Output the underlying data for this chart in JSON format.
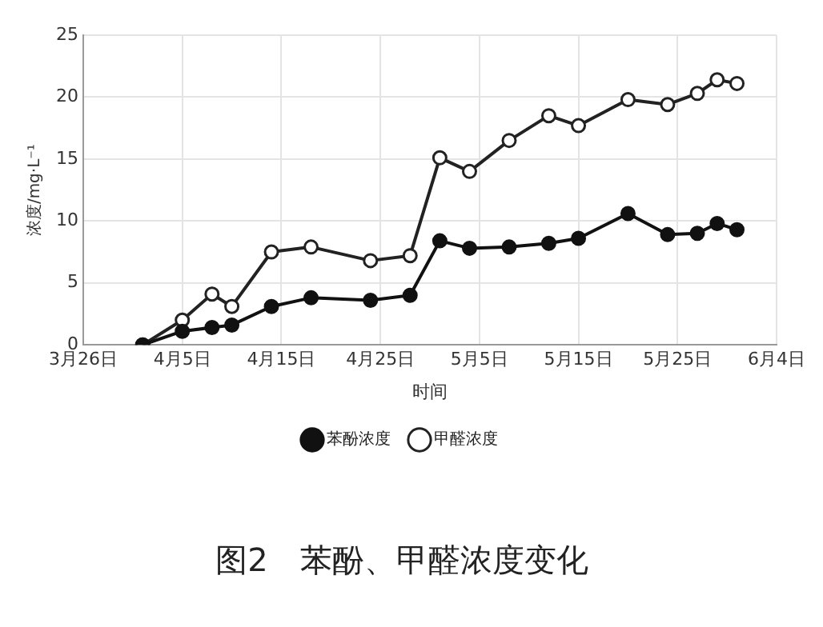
{
  "chart_data": {
    "type": "line",
    "title": "图2　苯酚、甲醛浓度变化",
    "xlabel": "时间",
    "ylabel": "浓度/mg·L⁻¹",
    "x": [
      "--04-01",
      "--04-05",
      "--04-08",
      "--04-10",
      "--04-14",
      "--04-18",
      "--04-24",
      "--04-28",
      "--05-01",
      "--05-04",
      "--05-08",
      "--05-12",
      "--05-15",
      "--05-20",
      "--05-24",
      "--05-27",
      "--05-29",
      "--05-31"
    ],
    "series": [
      {
        "name": "苯酚浓度",
        "color": "#111111",
        "marker": "circle",
        "values": [
          0,
          1.1,
          1.4,
          1.6,
          3.1,
          3.8,
          3.6,
          4.0,
          8.4,
          7.8,
          7.9,
          8.2,
          8.6,
          10.6,
          8.9,
          9.0,
          9.8,
          9.3
        ]
      },
      {
        "name": "甲醛浓度",
        "color": "#222222",
        "marker": "circle",
        "values": [
          0,
          2.0,
          4.1,
          3.1,
          7.5,
          7.9,
          6.8,
          7.2,
          15.1,
          14.0,
          16.5,
          18.5,
          17.7,
          19.8,
          19.4,
          20.3,
          21.4,
          21.1
        ]
      }
    ],
    "xlim": [
      "--03-26",
      "--06-04"
    ],
    "xticks": [
      {
        "value": "--03-26",
        "label": "3月26日"
      },
      {
        "value": "--04-05",
        "label": "4月5日"
      },
      {
        "value": "--04-15",
        "label": "4月15日"
      },
      {
        "value": "--04-25",
        "label": "4月25日"
      },
      {
        "value": "--05-05",
        "label": "5月5日"
      },
      {
        "value": "--05-15",
        "label": "5月15日"
      },
      {
        "value": "--05-25",
        "label": "5月25日"
      },
      {
        "value": "--06-04",
        "label": "6月4日"
      }
    ],
    "ylim": [
      0,
      25
    ],
    "yticks": [
      0,
      5,
      10,
      15,
      20,
      25
    ],
    "grid": true,
    "legend": "bottom"
  }
}
